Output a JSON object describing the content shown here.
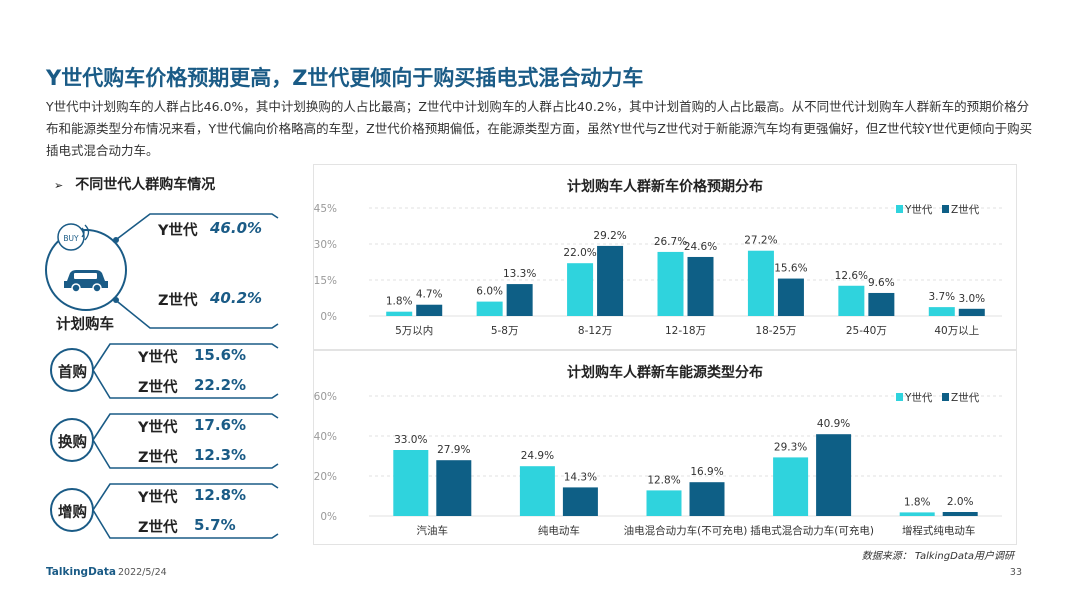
{
  "page": {
    "title": "Y世代购车价格预期更高，Z世代更倾向于购买插电式混合动力车",
    "description": "Y世代中计划购车的人群占比46.0%，其中计划换购的人占比最高；Z世代中计划购车的人群占比40.2%，其中计划首购的人占比最高。从不同世代计划购车人群新车的预期价格分布和能源类型分布情况来看，Y世代偏向价格略高的车型，Z世代价格预期偏低，在能源类型方面，虽然Y世代与Z世代对于新能源汽车均有更强偏好，但Z世代较Y世代更倾向于购买插电式混合动力车。",
    "source": "数据来源：  TalkingData用户调研",
    "logo": "TalkingData",
    "date": "2022/5/24",
    "page_number": "33"
  },
  "left_panel": {
    "heading_arrow": "➢",
    "heading": "不同世代人群购车情况",
    "buy_badge": "BUY",
    "plan": {
      "label": "计划购车",
      "y_label": "Y世代",
      "y_value": "46.0%",
      "z_label": "Z世代",
      "z_value": "40.2%"
    },
    "groups": [
      {
        "label": "首购",
        "y_label": "Y世代",
        "y_value": "15.6%",
        "z_label": "Z世代",
        "z_value": "22.2%"
      },
      {
        "label": "换购",
        "y_label": "Y世代",
        "y_value": "17.6%",
        "z_label": "Z世代",
        "z_value": "12.3%"
      },
      {
        "label": "增购",
        "y_label": "Y世代",
        "y_value": "12.8%",
        "z_label": "Z世代",
        "z_value": "5.7%"
      }
    ],
    "colors": {
      "accent": "#1a5b86"
    }
  },
  "chart_data": [
    {
      "type": "bar",
      "title": "计划购车人群新车价格预期分布",
      "categories": [
        "5万以内",
        "5-8万",
        "8-12万",
        "12-18万",
        "18-25万",
        "25-40万",
        "40万以上"
      ],
      "series": [
        {
          "name": "Y世代",
          "values": [
            1.8,
            6.0,
            22.0,
            26.7,
            27.2,
            12.6,
            3.7
          ],
          "labels": [
            "1.8%",
            "6.0%",
            "22.0%",
            "26.7%",
            "27.2%",
            "12.6%",
            "3.7%"
          ],
          "color": "#2fd3dd"
        },
        {
          "name": "Z世代",
          "values": [
            4.7,
            13.3,
            29.2,
            24.6,
            15.6,
            9.6,
            3.0
          ],
          "labels": [
            "4.7%",
            "13.3%",
            "29.2%",
            "24.6%",
            "15.6%",
            "9.6%",
            "3.0%"
          ],
          "color": "#0e5f86"
        }
      ],
      "ylim": [
        0,
        45
      ],
      "yticks": [
        "0%",
        "15%",
        "30%",
        "45%"
      ],
      "ytick_values": [
        0,
        15,
        30,
        45
      ],
      "legend": "top-right",
      "grid": true
    },
    {
      "type": "bar",
      "title": "计划购车人群新车能源类型分布",
      "categories": [
        "汽油车",
        "纯电动车",
        "油电混合动力车(不可充电)",
        "插电式混合动力车(可充电)",
        "增程式纯电动车"
      ],
      "series": [
        {
          "name": "Y世代",
          "values": [
            33.0,
            24.9,
            12.8,
            29.3,
            1.8
          ],
          "labels": [
            "33.0%",
            "24.9%",
            "12.8%",
            "29.3%",
            "1.8%"
          ],
          "color": "#2fd3dd"
        },
        {
          "name": "Z世代",
          "values": [
            27.9,
            14.3,
            16.9,
            40.9,
            2.0
          ],
          "labels": [
            "27.9%",
            "14.3%",
            "16.9%",
            "40.9%",
            "2.0%"
          ],
          "color": "#0e5f86"
        }
      ],
      "ylim": [
        0,
        60
      ],
      "yticks": [
        "0%",
        "20%",
        "40%",
        "60%"
      ],
      "ytick_values": [
        0,
        20,
        40,
        60
      ],
      "legend": "top-right",
      "grid": true
    }
  ]
}
